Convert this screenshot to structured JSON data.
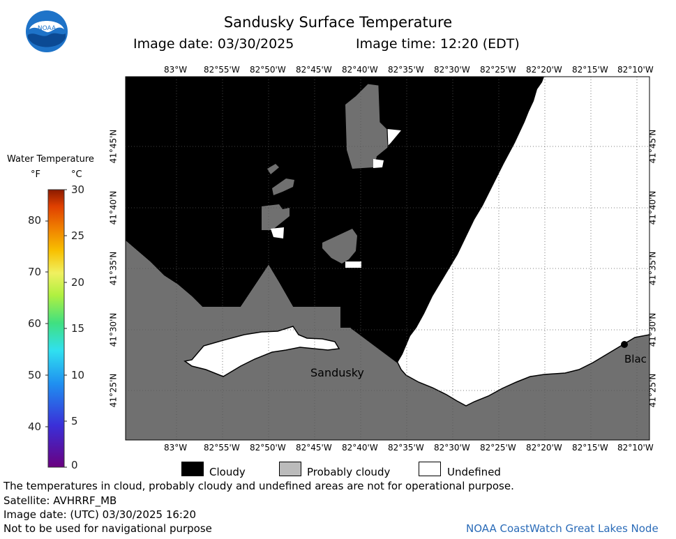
{
  "header": {
    "title": "Sandusky Surface Temperature",
    "subtitle_date": "Image date: 03/30/2025",
    "subtitle_time": "Image time: 12:20 (EDT)"
  },
  "logo": {
    "text": "NOAA"
  },
  "axes": {
    "top_lon": [
      "83°W",
      "82°55'W",
      "82°50'W",
      "82°45'W",
      "82°40'W",
      "82°35'W",
      "82°30'W",
      "82°25'W",
      "82°20'W",
      "82°15'W",
      "82°10'W"
    ],
    "bottom_lon": [
      "83°W",
      "82°55'W",
      "82°50'W",
      "82°45'W",
      "82°40'W",
      "82°35'W",
      "82°30'W",
      "82°25'W",
      "82°20'W",
      "82°15'W",
      "82°10'W"
    ],
    "left_lat": [
      "41°45'N",
      "41°40'N",
      "41°35'N",
      "41°30'N",
      "41°25'N"
    ],
    "right_lat": [
      "41°45'N",
      "41°40'N",
      "41°35'N",
      "41°30'N",
      "41°25'N"
    ]
  },
  "places": {
    "sandusky": "Sandusky",
    "right_town": "Blac"
  },
  "legend": {
    "title": "Water Temperature",
    "unit_f": "°F",
    "unit_c": "°C",
    "f_ticks": [
      "80",
      "70",
      "60",
      "50",
      "40"
    ],
    "c_ticks": [
      "30",
      "25",
      "20",
      "15",
      "10",
      "5",
      "0"
    ]
  },
  "key": {
    "cloudy": "Cloudy",
    "probably_cloudy": "Probably cloudy",
    "undefined": "Undefined",
    "colors": {
      "cloudy": "#000000",
      "probably_cloudy": "#bbbbbb",
      "undefined": "#ffffff",
      "land": "#707070"
    }
  },
  "footer": {
    "note": "The temperatures in cloud, probably cloudy and undefined areas are not for operational purpose.",
    "satellite": "Satellite: AVHRRF_MB",
    "utc_date": "Image date: (UTC) 03/30/2025  16:20",
    "nav_warning": "Not to be used for navigational purpose",
    "credit": "NOAA CoastWatch Great Lakes Node"
  }
}
